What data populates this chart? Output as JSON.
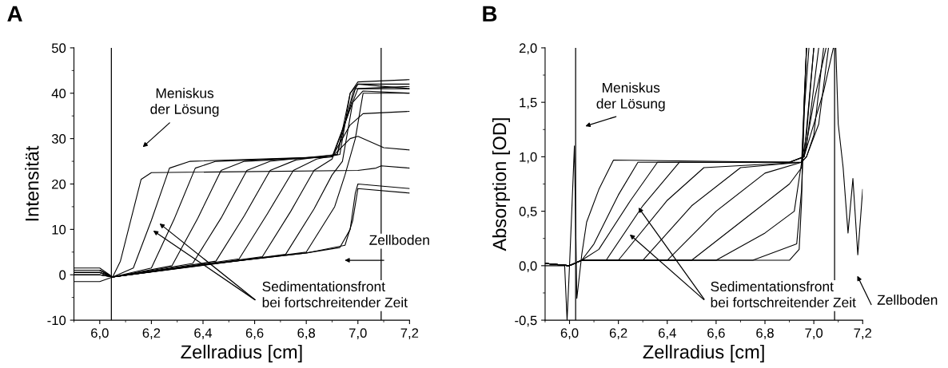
{
  "chart_data": [
    {
      "type": "line",
      "title": "A",
      "xlabel": "Zellradius [cm]",
      "ylabel": "Intensität",
      "grid": false,
      "legend": false,
      "marker": "none",
      "line_style": "solid",
      "xlim": [
        5.9,
        7.2
      ],
      "ylim": [
        -10,
        50
      ],
      "xticks": [
        {
          "value": 6.0,
          "label": "6,0"
        },
        {
          "value": 6.2,
          "label": "6,2"
        },
        {
          "value": 6.4,
          "label": "6,4"
        },
        {
          "value": 6.6,
          "label": "6,6"
        },
        {
          "value": 6.8,
          "label": "6,8"
        },
        {
          "value": 7.0,
          "label": "7,0"
        },
        {
          "value": 7.2,
          "label": "7,2"
        }
      ],
      "yticks": [
        -10,
        0,
        10,
        20,
        30,
        40,
        50
      ],
      "ref_lines": [
        {
          "axis": "x",
          "value": 6.045,
          "color": "#000000"
        },
        {
          "axis": "x",
          "value": 7.09,
          "color": "#000000"
        }
      ],
      "annotations": [
        "Meniskus\nder Lösung",
        "Zellboden",
        {
          "text": "Sedimentationsfront\nbei fortschreitender Zeit",
          "x": 6.2,
          "y": 10
        }
      ],
      "series": [
        {
          "color": "#000000",
          "x": [
            5.9,
            6.0,
            6.05,
            6.08,
            6.12,
            6.16,
            6.2,
            7.0,
            7.07,
            7.09,
            7.2
          ],
          "values": [
            0.5,
            0.5,
            -0.5,
            3,
            12,
            21,
            22.5,
            23,
            23.5,
            24,
            23.5
          ]
        },
        {
          "color": "#000000",
          "x": [
            5.9,
            6.0,
            6.05,
            6.13,
            6.2,
            6.27,
            6.35,
            6.9,
            6.97,
            7.0,
            7.1,
            7.2
          ],
          "values": [
            1,
            1,
            -0.5,
            1.5,
            12,
            23.5,
            25,
            26,
            30,
            30.5,
            28,
            27.5
          ]
        },
        {
          "color": "#000000",
          "x": [
            5.9,
            6.0,
            6.05,
            6.2,
            6.29,
            6.37,
            6.45,
            6.9,
            6.97,
            7.02,
            7.2
          ],
          "values": [
            0,
            0,
            -0.5,
            1.5,
            12.5,
            23.5,
            25,
            26,
            33,
            35.5,
            36
          ]
        },
        {
          "color": "#000000",
          "x": [
            5.9,
            6.0,
            6.05,
            6.28,
            6.38,
            6.47,
            6.56,
            6.9,
            6.98,
            7.02,
            7.2
          ],
          "values": [
            1.5,
            1.5,
            -0.5,
            2,
            12.5,
            23,
            25,
            26,
            38,
            40.5,
            40
          ]
        },
        {
          "color": "#000000",
          "x": [
            5.9,
            6.0,
            6.05,
            6.36,
            6.47,
            6.57,
            6.66,
            6.92,
            6.98,
            7.0,
            7.2
          ],
          "values": [
            -1.5,
            -1.5,
            -0.5,
            2.5,
            12.5,
            23,
            25,
            26.5,
            40,
            42,
            41
          ]
        },
        {
          "color": "#000000",
          "x": [
            5.9,
            6.0,
            6.05,
            6.45,
            6.56,
            6.66,
            6.76,
            6.92,
            6.97,
            7.0,
            7.2
          ],
          "values": [
            0.5,
            0.5,
            -0.5,
            3,
            13,
            23,
            25.3,
            26.5,
            40,
            42.5,
            43
          ]
        },
        {
          "color": "#000000",
          "x": [
            5.9,
            6.0,
            6.05,
            6.54,
            6.65,
            6.75,
            6.84,
            6.93,
            6.97,
            7.0,
            7.2
          ],
          "values": [
            1,
            1,
            -0.5,
            3.5,
            13.5,
            23,
            25.5,
            26.5,
            40,
            42,
            42
          ]
        },
        {
          "color": "#000000",
          "x": [
            5.9,
            6.0,
            6.05,
            6.63,
            6.74,
            6.83,
            6.9,
            6.96,
            6.99,
            7.2
          ],
          "values": [
            0,
            0,
            -0.5,
            4,
            14,
            23,
            25.5,
            35,
            41,
            41.5
          ]
        },
        {
          "color": "#000000",
          "x": [
            5.9,
            6.0,
            6.05,
            6.72,
            6.83,
            6.9,
            6.94,
            6.98,
            7.0,
            7.2
          ],
          "values": [
            1,
            1,
            -0.5,
            4.5,
            14.5,
            22,
            25,
            38,
            41,
            41
          ]
        },
        {
          "color": "#000000",
          "x": [
            5.9,
            6.0,
            6.05,
            6.8,
            6.91,
            6.95,
            6.99,
            7.02,
            7.2
          ],
          "values": [
            0.5,
            0.5,
            -0.5,
            5,
            15,
            22,
            30,
            40,
            40
          ]
        },
        {
          "color": "#000000",
          "x": [
            5.9,
            6.0,
            6.05,
            6.4,
            6.8,
            6.93,
            6.97,
            6.99,
            7.0,
            7.2
          ],
          "values": [
            0,
            0,
            -0.5,
            2.2,
            4.8,
            6,
            10,
            18,
            20,
            19
          ]
        },
        {
          "color": "#000000",
          "x": [
            5.9,
            6.0,
            6.05,
            6.4,
            6.8,
            6.95,
            6.98,
            7.0,
            7.2
          ],
          "values": [
            1,
            1,
            -0.5,
            2.2,
            4.8,
            6.5,
            12,
            19,
            18
          ]
        }
      ]
    },
    {
      "type": "line",
      "title": "B",
      "xlabel": "Zellradius [cm]",
      "ylabel": "Absorption [OD]",
      "grid": false,
      "legend": false,
      "marker": "none",
      "line_style": "solid",
      "xlim": [
        5.9,
        7.2
      ],
      "ylim": [
        -0.5,
        2.0
      ],
      "xticks": [
        {
          "value": 6.0,
          "label": "6,0"
        },
        {
          "value": 6.2,
          "label": "6,2"
        },
        {
          "value": 6.4,
          "label": "6,4"
        },
        {
          "value": 6.6,
          "label": "6,6"
        },
        {
          "value": 6.8,
          "label": "6,8"
        },
        {
          "value": 7.0,
          "label": "7,0"
        },
        {
          "value": 7.2,
          "label": "7,2"
        }
      ],
      "yticks": [
        {
          "value": -0.5,
          "label": "-0,5"
        },
        {
          "value": 0.0,
          "label": "0,0"
        },
        {
          "value": 0.5,
          "label": "0,5"
        },
        {
          "value": 1.0,
          "label": "1,0"
        },
        {
          "value": 1.5,
          "label": "1,5"
        },
        {
          "value": 2.0,
          "label": "2,0"
        }
      ],
      "ref_lines": [
        {
          "axis": "x",
          "value": 6.025,
          "color": "#000000"
        },
        {
          "axis": "x",
          "value": 7.085,
          "color": "#000000"
        }
      ],
      "annotations": [
        "Meniskus\nder Lösung",
        "Zellboden",
        {
          "text": "Sedimentationsfront\nbei fortschreitender Zeit",
          "x": 6.24,
          "y": 0.3
        }
      ],
      "series": [
        {
          "color": "#000000",
          "x": [
            5.9,
            5.98,
            5.99,
            6.0,
            6.02,
            6.03,
            6.05,
            6.07,
            6.12,
            6.18,
            6.9,
            6.96,
            6.98,
            7.0
          ],
          "values": [
            0.0,
            0.0,
            -0.5,
            0.0,
            1.1,
            -0.3,
            0.1,
            0.4,
            0.7,
            0.97,
            0.95,
            1.0,
            1.5,
            2.0
          ]
        },
        {
          "color": "#000000",
          "x": [
            5.9,
            6.0,
            6.05,
            6.1,
            6.2,
            6.28,
            6.9,
            6.96,
            7.0,
            7.05
          ],
          "values": [
            0.02,
            0.0,
            0.05,
            0.2,
            0.65,
            0.95,
            0.95,
            1.0,
            1.5,
            2.0
          ]
        },
        {
          "color": "#000000",
          "x": [
            5.9,
            6.0,
            6.05,
            6.12,
            6.25,
            6.36,
            6.9,
            6.96,
            7.04,
            7.08
          ],
          "values": [
            0.02,
            0.0,
            0.05,
            0.15,
            0.6,
            0.95,
            0.95,
            1.0,
            1.6,
            2.0
          ]
        },
        {
          "color": "#000000",
          "x": [
            5.9,
            6.0,
            6.05,
            6.15,
            6.3,
            6.45,
            6.95,
            6.97,
            7.02,
            7.06
          ],
          "values": [
            0.02,
            0.0,
            0.05,
            0.05,
            0.55,
            0.95,
            0.95,
            1.0,
            1.3,
            2.0
          ]
        },
        {
          "color": "#000000",
          "x": [
            5.9,
            6.0,
            6.05,
            6.2,
            6.4,
            6.55,
            6.95,
            6.97,
            7.0,
            7.04
          ],
          "values": [
            0.02,
            0.0,
            0.05,
            0.05,
            0.6,
            0.9,
            0.95,
            1.0,
            1.2,
            2.0
          ]
        },
        {
          "color": "#000000",
          "x": [
            5.9,
            6.0,
            6.05,
            6.3,
            6.5,
            6.7,
            6.95,
            6.97,
            7.02
          ],
          "values": [
            0.02,
            0.0,
            0.05,
            0.05,
            0.55,
            0.9,
            0.95,
            1.1,
            2.0
          ]
        },
        {
          "color": "#000000",
          "x": [
            5.9,
            6.0,
            6.05,
            6.4,
            6.6,
            6.8,
            6.95,
            6.97,
            7.0
          ],
          "values": [
            0.02,
            0.0,
            0.05,
            0.05,
            0.5,
            0.85,
            0.95,
            1.2,
            2.0
          ]
        },
        {
          "color": "#000000",
          "x": [
            5.9,
            6.0,
            6.05,
            6.5,
            6.7,
            6.9,
            6.95,
            6.96,
            6.98
          ],
          "values": [
            0.02,
            0.0,
            0.05,
            0.05,
            0.4,
            0.75,
            0.9,
            1.4,
            2.0
          ]
        },
        {
          "color": "#000000",
          "x": [
            5.9,
            6.0,
            6.05,
            6.6,
            6.8,
            6.92,
            6.95,
            6.97
          ],
          "values": [
            0.02,
            0.0,
            0.05,
            0.05,
            0.3,
            0.5,
            0.95,
            2.0
          ]
        },
        {
          "color": "#000000",
          "x": [
            5.9,
            6.0,
            6.05,
            6.75,
            6.93,
            6.95,
            6.97
          ],
          "values": [
            0.02,
            0.0,
            0.05,
            0.05,
            0.2,
            0.7,
            2.0
          ]
        },
        {
          "color": "#000000",
          "x": [
            5.9,
            6.0,
            6.05,
            6.9,
            6.94,
            6.95,
            6.96,
            6.97
          ],
          "values": [
            0.02,
            0.0,
            0.05,
            0.05,
            0.15,
            0.6,
            1.5,
            2.0
          ]
        },
        {
          "color": "#000000",
          "x": [
            7.09,
            7.1,
            7.12,
            7.14,
            7.16,
            7.18,
            7.2
          ],
          "values": [
            2.0,
            1.3,
            0.9,
            0.3,
            0.8,
            0.1,
            0.7
          ]
        }
      ]
    }
  ]
}
